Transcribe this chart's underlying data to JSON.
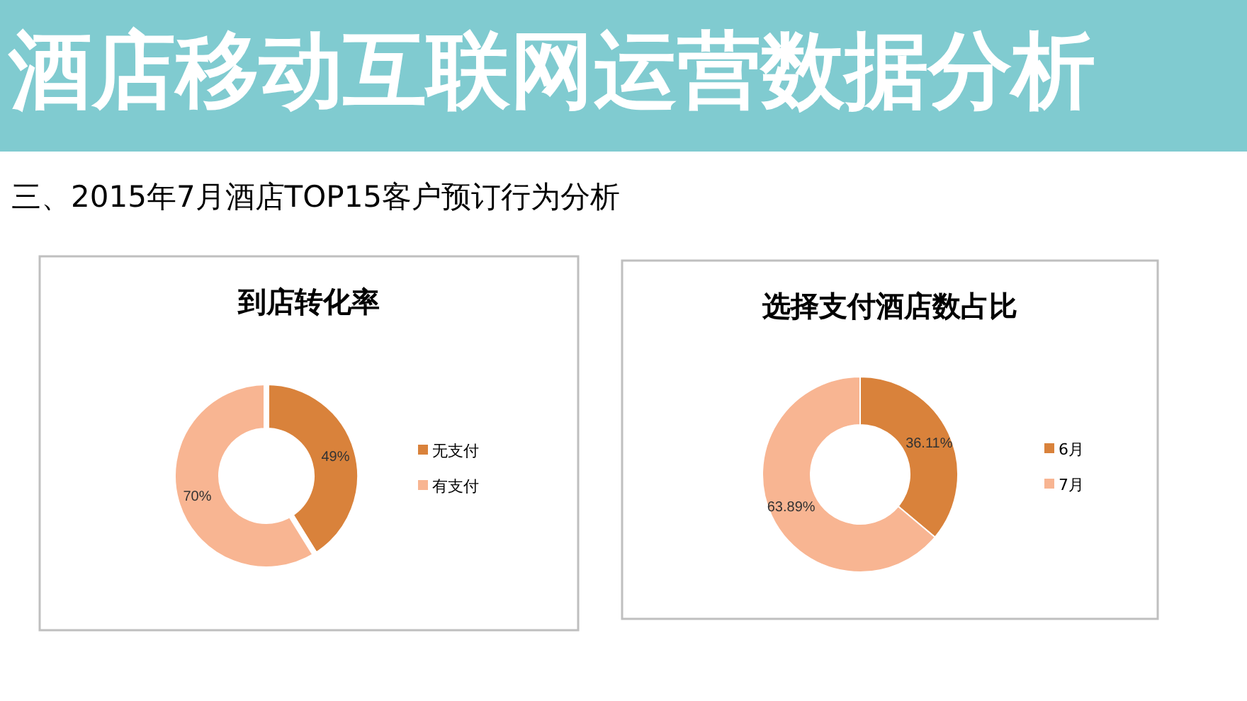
{
  "chart_data": [
    {
      "type": "other",
      "title": "酒店移动互联网运营数据分析",
      "subtitle": "三、2015年7月酒店TOP15客户预订行为分析"
    },
    {
      "type": "donut",
      "title": "到店转化率",
      "categories": [
        "无支付",
        "有支付"
      ],
      "values": [
        49,
        70
      ],
      "value_labels": [
        "49%",
        "70%"
      ],
      "colors": [
        "#d9823b",
        "#f8b592"
      ],
      "legend": "right"
    },
    {
      "type": "donut",
      "title": "选择支付酒店数占比",
      "categories": [
        "6月",
        "7月"
      ],
      "values": [
        36.11,
        63.89
      ],
      "value_labels": [
        "36.11%",
        "63.89%"
      ],
      "colors": [
        "#d9823b",
        "#f8b592"
      ],
      "legend": "right"
    }
  ]
}
